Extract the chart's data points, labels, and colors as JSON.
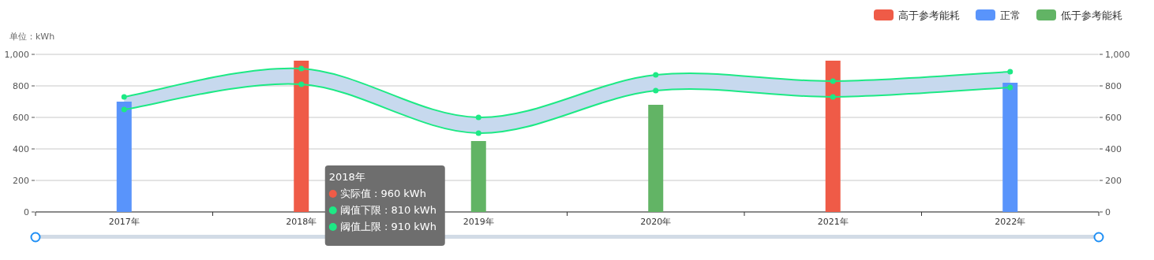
{
  "chart_data": {
    "type": "bar",
    "ylabel": "单位：kWh",
    "categories": [
      "2017年",
      "2018年",
      "2019年",
      "2020年",
      "2021年",
      "2022年"
    ],
    "series": [
      {
        "name": "高于参考能耗",
        "color": "#ef5b47",
        "values": [
          null,
          960,
          null,
          null,
          960,
          null
        ]
      },
      {
        "name": "正常",
        "color": "#5994fb",
        "values": [
          700,
          null,
          null,
          null,
          null,
          820
        ]
      },
      {
        "name": "低于参考能耗",
        "color": "#62b465",
        "values": [
          null,
          null,
          450,
          680,
          null,
          null
        ]
      },
      {
        "type": "line",
        "color": "#1de985",
        "values": [
          650,
          810,
          500,
          770,
          730,
          790
        ]
      },
      {
        "type": "line",
        "color": "#1de985",
        "values": [
          730,
          910,
          600,
          870,
          830,
          890
        ],
        "lower": [
          650,
          810,
          500,
          770,
          730,
          790
        ],
        "upper": [
          730,
          910,
          600,
          870,
          830,
          890
        ]
      }
    ],
    "ylim": [
      0,
      1000
    ],
    "yticks": [
      0,
      200,
      400,
      600,
      800,
      {
        "value": 1000,
        "label": "1,000"
      }
    ],
    "y2lim": [
      0,
      1000
    ],
    "y2ticks": [
      0,
      200,
      400,
      600,
      800,
      {
        "value": 1000,
        "label": "1,000"
      }
    ],
    "grid": "y",
    "legend": "top right",
    "marker": "circle",
    "annotations": [
      "2018年",
      "实际值 : 960 kWh",
      "阈值下限 : 810 kWh",
      "阈值上限 : 910 kWh"
    ]
  }
}
